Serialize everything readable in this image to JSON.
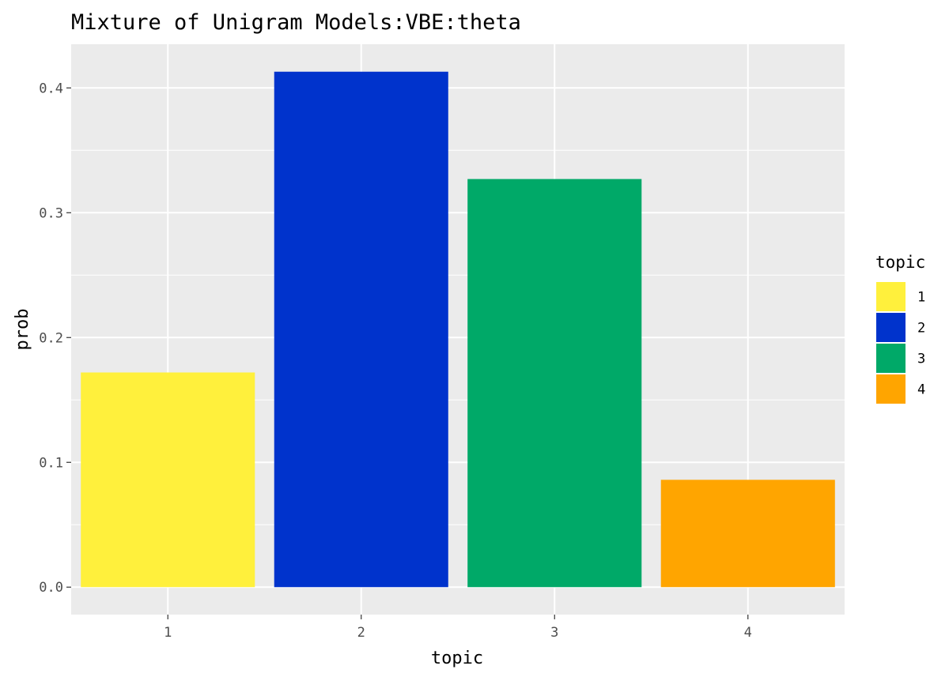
{
  "chart_data": {
    "type": "bar",
    "title": "Mixture of Unigram Models:VBE:theta",
    "xlabel": "topic",
    "ylabel": "prob",
    "categories": [
      "1",
      "2",
      "3",
      "4"
    ],
    "values": [
      0.172,
      0.413,
      0.327,
      0.086
    ],
    "colors": [
      "#FFF03C",
      "#0033CC",
      "#00A968",
      "#FFA500"
    ],
    "ylim": [
      -0.022,
      0.435
    ],
    "yticks": [
      0.0,
      0.1,
      0.2,
      0.3,
      0.4
    ],
    "ytick_labels": [
      "0.0",
      "0.1",
      "0.2",
      "0.3",
      "0.4"
    ],
    "grid": true,
    "panel_background": "#EBEBEB",
    "legend": {
      "title": "topic",
      "position": "right",
      "entries": [
        "1",
        "2",
        "3",
        "4"
      ]
    }
  }
}
